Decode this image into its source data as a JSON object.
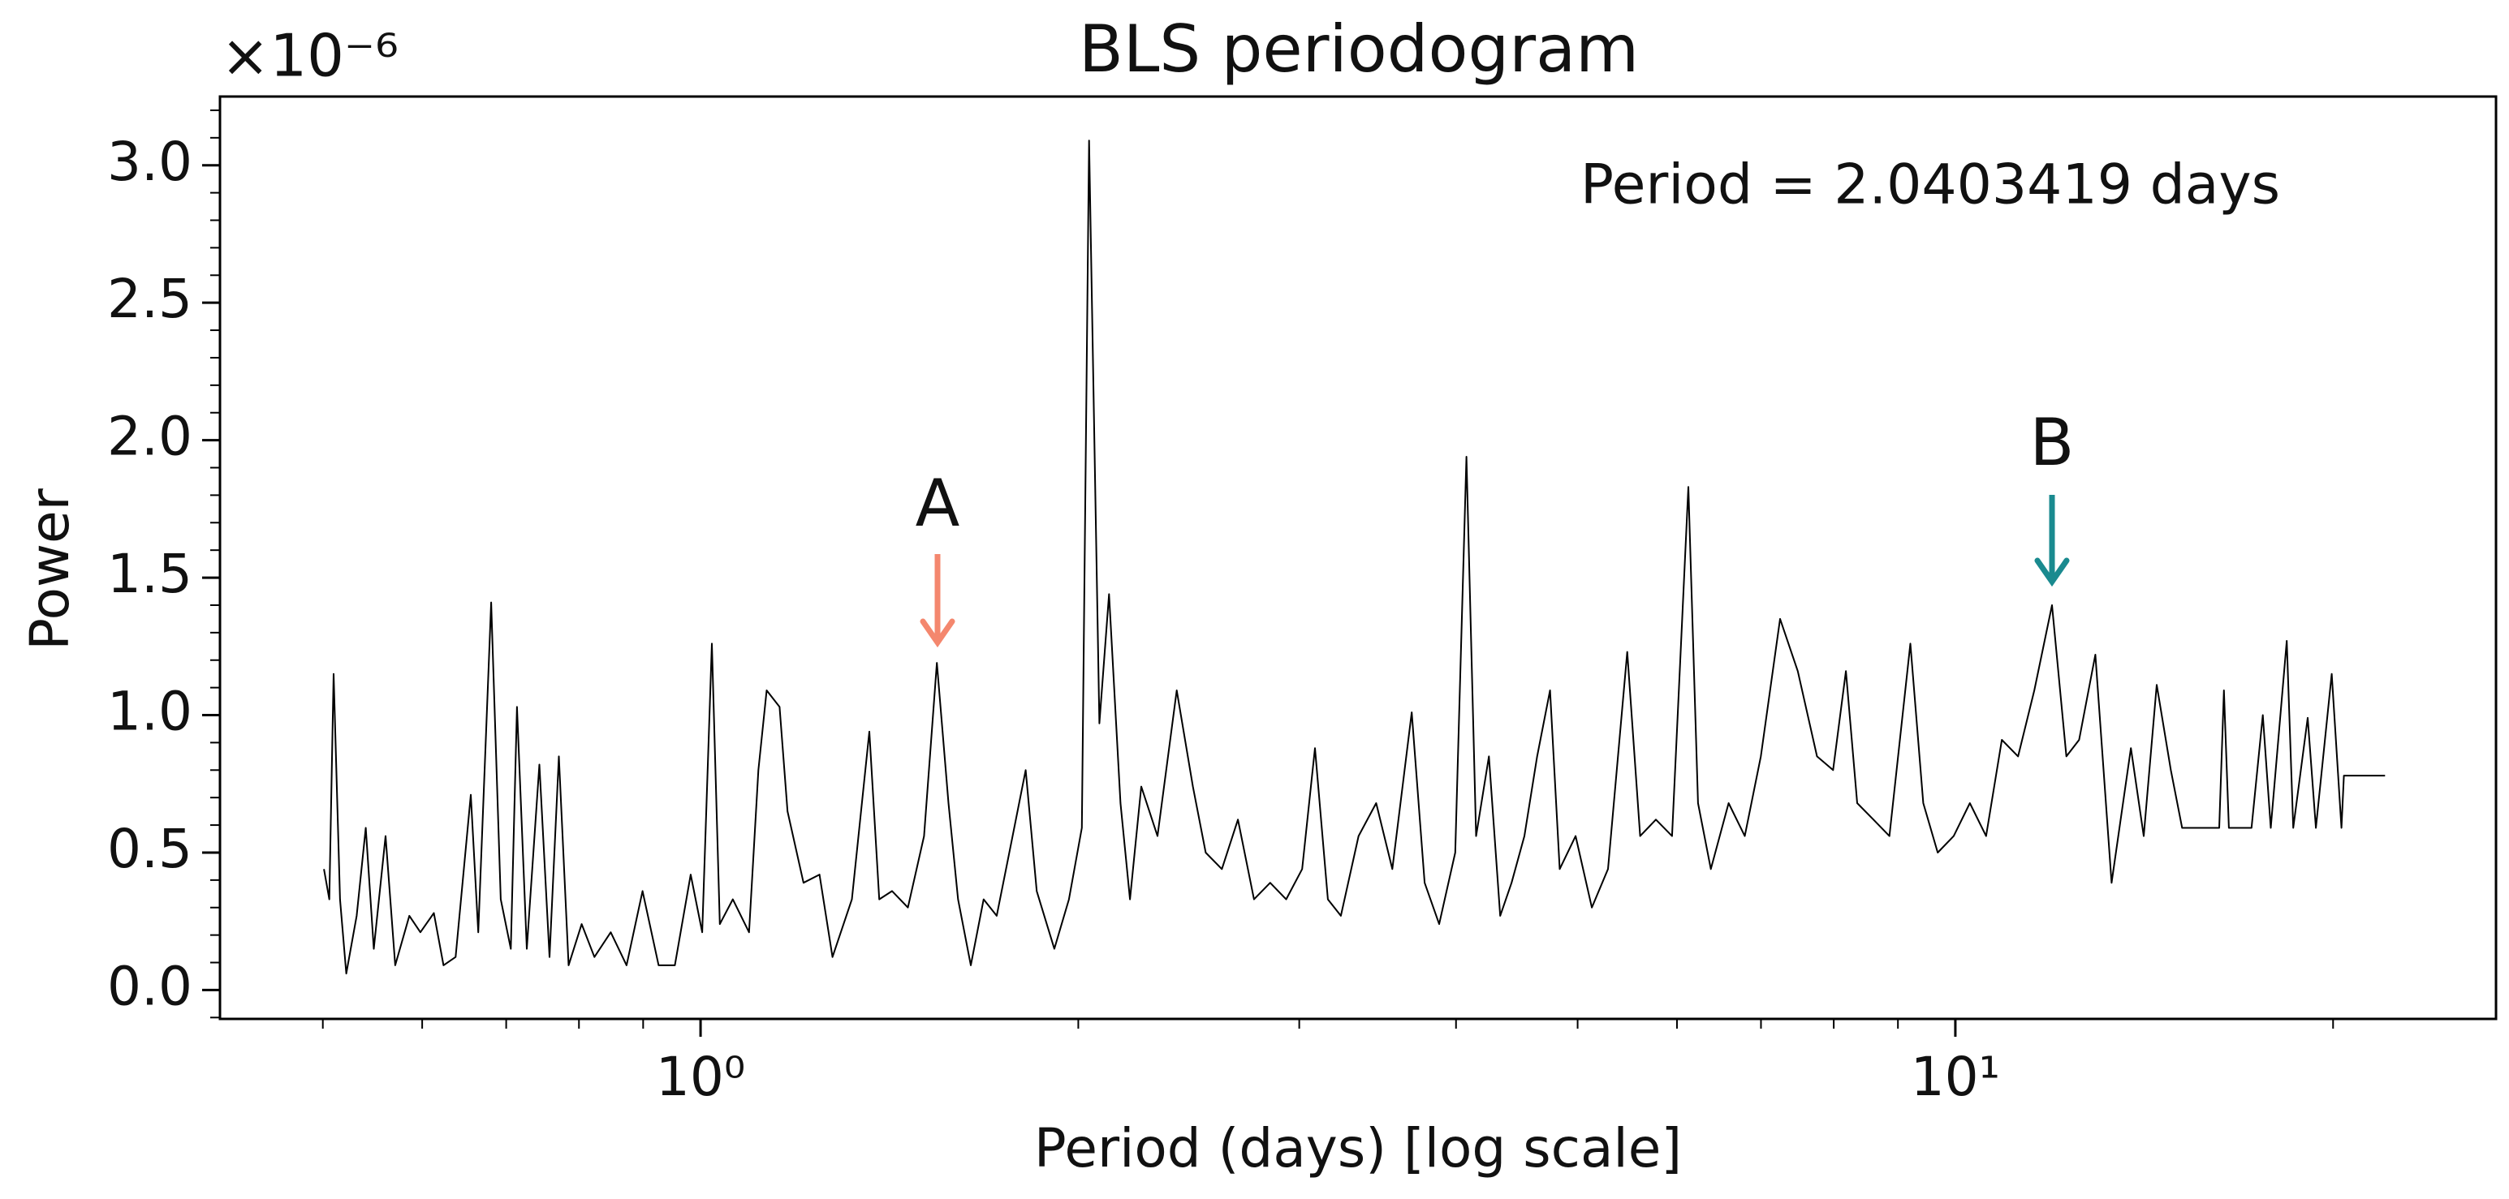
{
  "chart_data": {
    "type": "line",
    "title": "BLS periodogram",
    "xlabel": "Period (days) [log scale]",
    "ylabel": "Power",
    "y_offset_label": "×10⁻⁶",
    "note": "Period = 2.0403419 days",
    "xscale": "log",
    "color": "#000000",
    "annotations": [
      {
        "text": "A",
        "color": "#f4876e"
      },
      {
        "text": "B",
        "color": "#1a8a8f"
      }
    ],
    "xlim": [
      0.414,
      26.97
    ],
    "ylim": [
      -0.105,
      3.25
    ],
    "xticks": [
      {
        "value": 1,
        "label": "10⁰"
      },
      {
        "value": 10,
        "label": "10¹"
      }
    ],
    "xminorticks": [
      0.5,
      0.6,
      0.7,
      0.8,
      0.9,
      2,
      3,
      4,
      5,
      6,
      7,
      8,
      9,
      20
    ],
    "yticks": [
      {
        "value": 0,
        "label": "0.0"
      },
      0.5,
      {
        "value": 1,
        "label": "1.0"
      },
      1.5,
      {
        "value": 2,
        "label": "2.0"
      },
      2.5,
      {
        "value": 3,
        "label": "3.0"
      }
    ],
    "yminorticks": [
      -0.1,
      0.1,
      0.2,
      0.3,
      0.4,
      0.6,
      0.7,
      0.8,
      0.9,
      1.1,
      1.2,
      1.3,
      1.4,
      1.6,
      1.7,
      1.8,
      1.9,
      2.1,
      2.2,
      2.3,
      2.4,
      2.6,
      2.7,
      2.8,
      2.9,
      3.1,
      3.2
    ],
    "x": [
      0.501,
      0.506,
      0.51,
      0.516,
      0.522,
      0.532,
      0.541,
      0.549,
      0.561,
      0.571,
      0.586,
      0.598,
      0.613,
      0.624,
      0.638,
      0.656,
      0.665,
      0.681,
      0.693,
      0.706,
      0.714,
      0.727,
      0.744,
      0.758,
      0.771,
      0.785,
      0.804,
      0.823,
      0.848,
      0.873,
      0.899,
      0.926,
      0.954,
      0.982,
      1.003,
      1.021,
      1.036,
      1.061,
      1.093,
      1.112,
      1.129,
      1.156,
      1.173,
      1.208,
      1.244,
      1.274,
      1.32,
      1.363,
      1.388,
      1.421,
      1.463,
      1.507,
      1.543,
      1.576,
      1.604,
      1.642,
      1.681,
      1.722,
      1.773,
      1.816,
      1.853,
      1.914,
      1.966,
      2.013,
      2.04,
      2.079,
      2.116,
      2.161,
      2.199,
      2.245,
      2.313,
      2.396,
      2.468,
      2.527,
      2.603,
      2.681,
      2.761,
      2.844,
      2.929,
      3.016,
      3.088,
      3.162,
      3.238,
      3.345,
      3.455,
      3.559,
      3.688,
      3.776,
      3.878,
      3.994,
      4.077,
      4.15,
      4.249,
      4.338,
      4.429,
      4.535,
      4.642,
      4.753,
      4.838,
      4.982,
      5.132,
      5.287,
      5.477,
      5.608,
      5.772,
      5.946,
      6.127,
      6.236,
      6.385,
      6.596,
      6.795,
      6.998,
      7.25,
      7.489,
      7.758,
      7.99,
      8.181,
      8.352,
      8.604,
      8.86,
      9.207,
      9.428,
      9.681,
      9.97,
      10.27,
      10.58,
      10.89,
      11.22,
      11.56,
      11.94,
      12.26,
      12.55,
      12.93,
      13.32,
      13.8,
      14.13,
      14.47,
      14.85,
      15.16,
      16.23,
      16.37,
      16.52,
      17.22,
      17.58,
      17.84,
      18.37,
      18.59,
      19.09,
      19.38,
      19.95,
      20.31,
      20.4,
      22.0
    ],
    "values": [
      0.44,
      0.33,
      1.15,
      0.33,
      0.06,
      0.27,
      0.59,
      0.15,
      0.56,
      0.09,
      0.27,
      0.21,
      0.28,
      0.09,
      0.12,
      0.71,
      0.21,
      1.41,
      0.33,
      0.15,
      1.03,
      0.15,
      0.82,
      0.12,
      0.85,
      0.09,
      0.24,
      0.12,
      0.21,
      0.09,
      0.36,
      0.09,
      0.09,
      0.42,
      0.21,
      1.26,
      0.24,
      0.33,
      0.21,
      0.8,
      1.09,
      1.03,
      0.65,
      0.39,
      0.42,
      0.12,
      0.33,
      0.94,
      0.33,
      0.36,
      0.3,
      0.56,
      1.19,
      0.68,
      0.33,
      0.09,
      0.33,
      0.27,
      0.56,
      0.8,
      0.36,
      0.15,
      0.33,
      0.59,
      3.09,
      0.97,
      1.44,
      0.68,
      0.33,
      0.74,
      0.56,
      1.09,
      0.74,
      0.5,
      0.44,
      0.62,
      0.33,
      0.39,
      0.33,
      0.44,
      0.88,
      0.33,
      0.27,
      0.56,
      0.68,
      0.44,
      1.01,
      0.39,
      0.24,
      0.5,
      1.94,
      0.56,
      0.85,
      0.27,
      0.39,
      0.56,
      0.85,
      1.09,
      0.44,
      0.56,
      0.3,
      0.44,
      1.23,
      0.56,
      0.62,
      0.56,
      1.83,
      0.68,
      0.44,
      0.68,
      0.56,
      0.85,
      1.35,
      1.16,
      0.85,
      0.8,
      1.16,
      0.68,
      0.62,
      0.56,
      1.26,
      0.68,
      0.5,
      0.56,
      0.68,
      0.56,
      0.91,
      0.85,
      1.09,
      1.4,
      0.85,
      0.91,
      1.22,
      0.39,
      0.88,
      0.56,
      1.11,
      0.8,
      0.59,
      0.59,
      1.09,
      0.59,
      0.59,
      1.0,
      0.59,
      1.27,
      0.59,
      0.99,
      0.59,
      1.15,
      0.59,
      0.78,
      0.78
    ]
  }
}
